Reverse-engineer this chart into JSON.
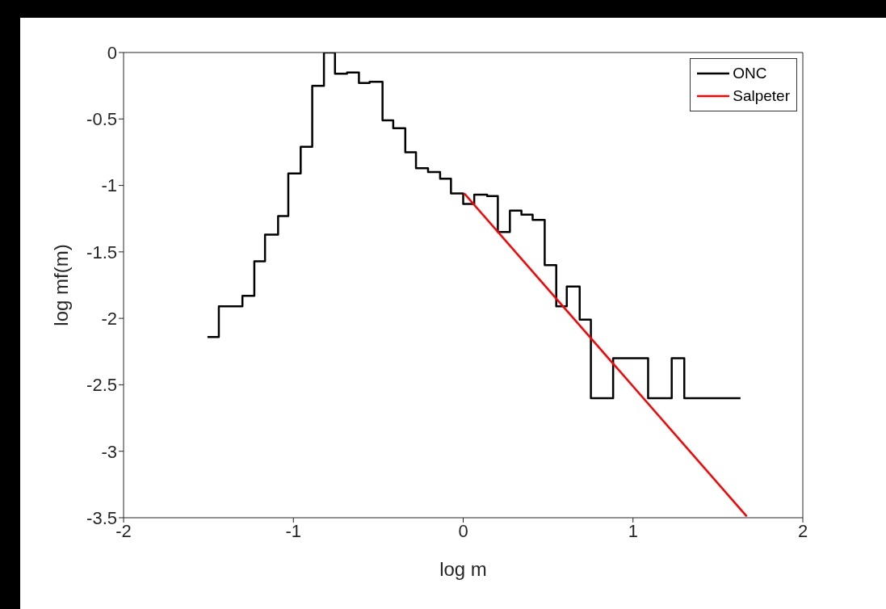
{
  "chart_data": {
    "type": "step",
    "xlabel": "log m",
    "ylabel": "log mf(m)",
    "xlim": [
      -2,
      2
    ],
    "xticks": [
      -2,
      -1,
      0,
      1,
      2
    ],
    "ylim": [
      -3.5,
      0
    ],
    "yticks": [
      -3.5,
      -3,
      -2.5,
      -2,
      -1.5,
      -1,
      -0.5,
      0
    ],
    "legend": "top right",
    "marker": "none",
    "line_style": "solid",
    "series": [
      {
        "name": "ONC",
        "color": "#000000",
        "x": [
          -1.506,
          -1.439,
          -1.3,
          -1.23,
          -1.167,
          -1.09,
          -1.03,
          -0.957,
          -0.889,
          -0.82,
          -0.755,
          -0.684,
          -0.614,
          -0.551,
          -0.475,
          -0.412,
          -0.341,
          -0.278,
          -0.207,
          -0.136,
          -0.072,
          0,
          0.065,
          0.141,
          0.204,
          0.275,
          0.343,
          0.409,
          0.48,
          0.548,
          0.61,
          0.686,
          0.752,
          0.883,
          1.089,
          1.228,
          1.302,
          1.633
        ],
        "values": [
          -2.14,
          -1.91,
          -1.83,
          -1.57,
          -1.37,
          -1.23,
          -0.91,
          -0.71,
          -0.25,
          0,
          -0.16,
          -0.15,
          -0.23,
          -0.22,
          -0.51,
          -0.57,
          -0.75,
          -0.87,
          -0.9,
          -0.95,
          -1.06,
          -1.14,
          -1.07,
          -1.08,
          -1.35,
          -1.19,
          -1.22,
          -1.26,
          -1.6,
          -1.91,
          -1.76,
          -2.01,
          -2.6,
          -2.3,
          -2.6,
          -2.3,
          -2.6,
          -2.6
        ]
      },
      {
        "name": "Salpeter",
        "type": "line",
        "color": "#ff0000",
        "x": [
          0.006,
          1.67
        ],
        "values": [
          -1.06,
          -3.49
        ]
      }
    ]
  }
}
